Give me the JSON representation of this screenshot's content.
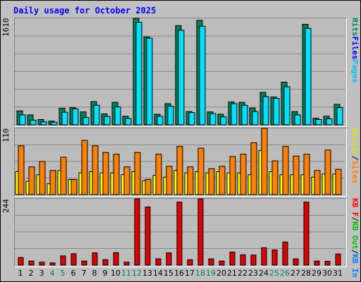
{
  "chart_data": {
    "type": "bar",
    "title": "Daily usage for October 2025",
    "categories": [
      "1",
      "2",
      "3",
      "4",
      "5",
      "6",
      "7",
      "8",
      "9",
      "10",
      "11",
      "12",
      "13",
      "14",
      "15",
      "16",
      "17",
      "18",
      "19",
      "20",
      "21",
      "22",
      "23",
      "24",
      "25",
      "26",
      "27",
      "28",
      "29",
      "30",
      "31"
    ],
    "weekend_days": [
      "4",
      "5",
      "11",
      "12",
      "18",
      "19",
      "25",
      "26"
    ],
    "panels": [
      {
        "max_label": "1610",
        "ymax": 1610,
        "legend": [
          {
            "name": "Hits",
            "color": "#00805c"
          },
          {
            "name": "Files",
            "color": "#0000ff"
          },
          {
            "name": "Pages",
            "color": "#00c0ff"
          }
        ],
        "series": [
          {
            "name": "Hits",
            "color": "#00805c",
            "values": [
              210,
              150,
              80,
              55,
              250,
              260,
              195,
              350,
              165,
              340,
              130,
              1610,
              1330,
              160,
              320,
              1500,
              200,
              1580,
              195,
              160,
              345,
              340,
              255,
              490,
              420,
              645,
              200,
              1520,
              100,
              130,
              310
            ]
          },
          {
            "name": "Files",
            "color": "#00e0ff",
            "values": [
              150,
              70,
              45,
              40,
              190,
              240,
              110,
              295,
              125,
              270,
              95,
              1550,
              1310,
              130,
              280,
              1430,
              185,
              1490,
              170,
              120,
              320,
              295,
              200,
              425,
              400,
              575,
              150,
              1460,
              80,
              90,
              260
            ]
          }
        ]
      },
      {
        "max_label": "110",
        "ymax": 110,
        "legend": [
          {
            "name": "Visits",
            "color": "#e0e000"
          },
          {
            "name": "/",
            "color": "#000000"
          },
          {
            "name": "Sites",
            "color": "#ff8000"
          }
        ],
        "series": [
          {
            "name": "Visits",
            "color": "#ffff00",
            "values": [
              38,
              22,
              33,
              18,
              40,
              25,
              36,
              38,
              36,
              36,
              33,
              38,
              23,
              32,
              29,
              40,
              36,
              38,
              36,
              38,
              36,
              36,
              33,
              73,
              38,
              33,
              33,
              33,
              29,
              34,
              34
            ]
          },
          {
            "name": "Sites",
            "color": "#ff8000",
            "values": [
              81,
              46,
              55,
              40,
              62,
              25,
              90,
              81,
              70,
              67,
              46,
              70,
              25,
              67,
              47,
              80,
              46,
              77,
              43,
              47,
              63,
              67,
              86,
              110,
              56,
              80,
              64,
              67,
              40,
              74,
              42
            ]
          }
        ]
      },
      {
        "max_label": "244",
        "ymax": 244,
        "legend": [
          {
            "name": "KB F",
            "color": "#ff0000"
          },
          {
            "name": "/",
            "color": "#000000"
          },
          {
            "name": "KB Out",
            "color": "#00c000"
          },
          {
            "name": "/",
            "color": "#000000"
          },
          {
            "name": "KB In",
            "color": "#0080ff"
          }
        ],
        "series": [
          {
            "name": "KB F",
            "color": "#e00000",
            "values": [
              28,
              15,
              11,
              8,
              34,
              42,
              15,
              45,
              20,
              46,
              11,
              244,
              214,
              23,
              45,
              232,
              20,
              244,
              23,
              15,
              48,
              38,
              37,
              64,
              56,
              85,
              23,
              232,
              15,
              14,
              41
            ]
          }
        ]
      }
    ]
  }
}
